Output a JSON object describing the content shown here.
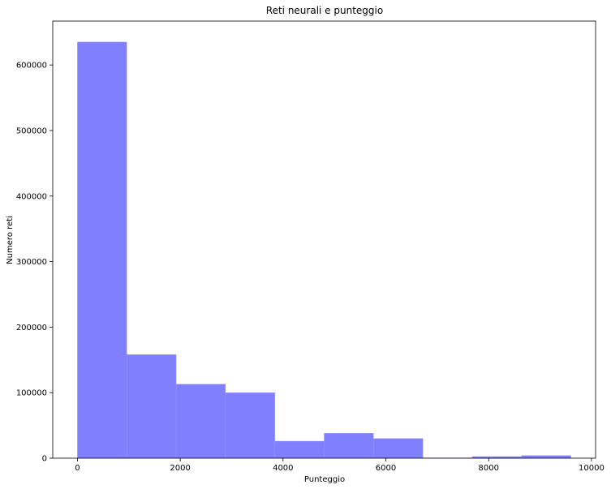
{
  "chart_data": {
    "type": "bar",
    "subtype": "histogram",
    "title": "Reti neurali e punteggio",
    "xlabel": "Punteggio",
    "ylabel": "Numero reti",
    "bins": [
      {
        "x0": 0,
        "x1": 960,
        "count": 635000
      },
      {
        "x0": 960,
        "x1": 1920,
        "count": 158000
      },
      {
        "x0": 1920,
        "x1": 2880,
        "count": 113000
      },
      {
        "x0": 2880,
        "x1": 3840,
        "count": 100000
      },
      {
        "x0": 3840,
        "x1": 4800,
        "count": 26000
      },
      {
        "x0": 4800,
        "x1": 5760,
        "count": 38000
      },
      {
        "x0": 5760,
        "x1": 6720,
        "count": 30000
      },
      {
        "x0": 6720,
        "x1": 7680,
        "count": 500
      },
      {
        "x0": 7680,
        "x1": 8640,
        "count": 2500
      },
      {
        "x0": 8640,
        "x1": 9600,
        "count": 4000
      }
    ],
    "xlim": [
      -480,
      10080
    ],
    "ylim": [
      0,
      667000
    ],
    "xticks": [
      0,
      2000,
      4000,
      6000,
      8000,
      10000
    ],
    "yticks": [
      0,
      100000,
      200000,
      300000,
      400000,
      500000,
      600000
    ],
    "bar_color": "#8080ff",
    "grid": false
  }
}
